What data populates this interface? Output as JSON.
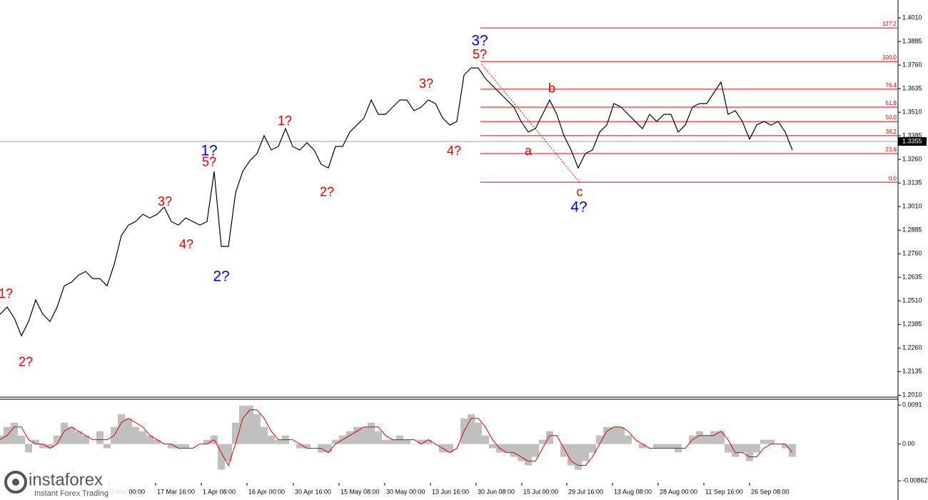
{
  "chart_data": {
    "type": "line",
    "color": "#000000",
    "xlim": [
      0,
      125.8
    ],
    "ylim": [
      1.2,
      1.4105
    ],
    "yticks": [
      {
        "value": 1.401,
        "label": "1.4010"
      },
      1.3885,
      {
        "value": 1.376,
        "label": "1.3760"
      },
      1.3635,
      {
        "value": 1.351,
        "label": "1.3510"
      },
      1.3385,
      {
        "value": 1.326,
        "label": "1.3260"
      },
      1.3135,
      {
        "value": 1.301,
        "label": "1.3010"
      },
      1.2885,
      {
        "value": 1.276,
        "label": "1.2760"
      },
      1.2635,
      {
        "value": 1.251,
        "label": "1.2510"
      },
      1.2385,
      {
        "value": 1.226,
        "label": "1.2260"
      },
      1.2135,
      {
        "value": 1.201,
        "label": "1.2010"
      }
    ],
    "xticks": [
      {
        "value": 15.3,
        "label": "3 Mar 00:00"
      },
      {
        "value": 21.8,
        "label": "17 Mar 16:00"
      },
      {
        "value": 28.2,
        "label": "1 Apr 08:00"
      },
      {
        "value": 34.6,
        "label": "16 Apr 00:00"
      },
      {
        "value": 41.1,
        "label": "30 Apr 16:00"
      },
      {
        "value": 47.5,
        "label": "15 May 08:00"
      },
      {
        "value": 53.9,
        "label": "30 May 00:00"
      },
      {
        "value": 60.3,
        "label": "13 Jun 16:00"
      },
      {
        "value": 66.7,
        "label": "30 Jun 08:00"
      },
      {
        "value": 73.1,
        "label": "15 Jul 00:00"
      },
      {
        "value": 79.4,
        "label": "29 Jul 16:00"
      },
      {
        "value": 85.8,
        "label": "13 Aug 08:00"
      },
      {
        "value": 92.2,
        "label": "28 Aug 00:00"
      },
      {
        "value": 98.6,
        "label": "11 Sep 16:00"
      },
      {
        "value": 105.0,
        "label": "26 Sep 08:00"
      }
    ],
    "values": [
      1.2439,
      1.2477,
      1.242,
      1.2325,
      1.2401,
      1.2515,
      1.2439,
      1.2401,
      1.2477,
      1.259,
      1.2609,
      1.2647,
      1.2666,
      1.2628,
      1.2628,
      1.259,
      1.2704,
      1.2856,
      1.2912,
      1.2931,
      1.2969,
      1.295,
      1.2969,
      1.3007,
      1.2931,
      1.2912,
      1.295,
      1.2931,
      1.2912,
      1.2931,
      1.3196,
      1.2799,
      1.2799,
      1.3083,
      1.3196,
      1.3253,
      1.3291,
      1.3386,
      1.331,
      1.3329,
      1.3423,
      1.3329,
      1.331,
      1.3348,
      1.331,
      1.3234,
      1.3215,
      1.3329,
      1.3329,
      1.3405,
      1.3442,
      1.348,
      1.3575,
      1.3499,
      1.3499,
      1.3537,
      1.3575,
      1.3575,
      1.3518,
      1.3537,
      1.3575,
      1.3556,
      1.348,
      1.3442,
      1.3461,
      1.3707,
      1.3745,
      1.3745,
      1.3689,
      1.3651,
      1.3613,
      1.3575,
      1.3537,
      1.3461,
      1.3405,
      1.3423,
      1.3499,
      1.3575,
      1.3499,
      1.3386,
      1.331,
      1.3215,
      1.3291,
      1.331,
      1.3405,
      1.3442,
      1.3556,
      1.3537,
      1.3499,
      1.3461,
      1.3423,
      1.3499,
      1.3461,
      1.3499,
      1.3499,
      1.3405,
      1.3442,
      1.3537,
      1.3556,
      1.3556,
      1.3613,
      1.367,
      1.3499,
      1.3518,
      1.3461,
      1.3367,
      1.3442,
      1.3461,
      1.3442,
      1.3461,
      1.3405,
      1.331
    ],
    "current_price": 1.3355,
    "fib_color": "#e00000",
    "fib_x_start": 67.3,
    "fib_levels": [
      {
        "label": "127.2",
        "value": 1.3957
      },
      {
        "label": "100.0",
        "value": 1.3779
      },
      {
        "label": "76.4",
        "value": 1.3632
      },
      {
        "label": "61.8",
        "value": 1.3537
      },
      {
        "label": "50.0",
        "value": 1.3461
      },
      {
        "label": "38.2",
        "value": 1.3386
      },
      {
        "label": "23.6",
        "value": 1.3291
      },
      {
        "label": "0.0",
        "value": 1.3139
      }
    ],
    "trend_line": {
      "x": [
        67.5,
        81.2
      ],
      "y": [
        1.3764,
        1.3139
      ]
    },
    "annotations": [
      {
        "text": "1?",
        "color": "#e00000",
        "x": 0.8,
        "y": 1.2545
      },
      {
        "text": "2?",
        "color": "#e00000",
        "x": 3.6,
        "y": 1.2182
      },
      {
        "text": "3?",
        "color": "#e00000",
        "x": 23.1,
        "y": 1.3033
      },
      {
        "text": "4?",
        "color": "#e00000",
        "x": 26.1,
        "y": 1.2806
      },
      {
        "text": "1?",
        "color": "#0000e0",
        "x": 29.3,
        "y": 1.3302
      },
      {
        "text": "5?",
        "color": "#e00000",
        "x": 29.3,
        "y": 1.3242
      },
      {
        "text": "2?",
        "color": "#0000e0",
        "x": 31.0,
        "y": 1.2636
      },
      {
        "text": "1?",
        "color": "#e00000",
        "x": 39.9,
        "y": 1.3461
      },
      {
        "text": "2?",
        "color": "#e00000",
        "x": 45.8,
        "y": 1.3083
      },
      {
        "text": "3?",
        "color": "#e00000",
        "x": 59.7,
        "y": 1.3658
      },
      {
        "text": "4?",
        "color": "#e00000",
        "x": 63.6,
        "y": 1.3302
      },
      {
        "text": "3?",
        "color": "#0000e0",
        "x": 67.2,
        "y": 1.3885
      },
      {
        "text": "5?",
        "color": "#e00000",
        "x": 67.2,
        "y": 1.3813
      },
      {
        "text": "a",
        "color": "#e00000",
        "x": 74.0,
        "y": 1.3302
      },
      {
        "text": "b",
        "color": "#e00000",
        "x": 77.3,
        "y": 1.3632
      },
      {
        "text": "c",
        "color": "#e00000",
        "x": 81.2,
        "y": 1.3083
      },
      {
        "text": "4?",
        "color": "#0000e0",
        "x": 81.1,
        "y": 1.3003
      }
    ],
    "oscillator": {
      "ylim": [
        -0.0131,
        0.0103
      ],
      "yticks": [
        0.0091,
        {
          "value": 0,
          "label": "0.00"
        },
        -0.00862
      ],
      "histogram_color": "#c0c0c0",
      "signal_color": "#e00000",
      "histogram": [
        0.002,
        0.004,
        0.005,
        0.002,
        -0.002,
        0.001,
        -0.001,
        -0.001,
        0.002,
        0.005,
        0.004,
        0.003,
        0.002,
        0.0,
        0.003,
        -0.001,
        0.004,
        0.007,
        0.006,
        0.004,
        0.003,
        0.002,
        0.001,
        0.0,
        -0.001,
        -0.001,
        -0.001,
        0.0,
        0.0,
        0.001,
        0.002,
        -0.006,
        -0.004,
        0.005,
        0.009,
        0.009,
        0.007,
        0.004,
        0.002,
        0.001,
        0.002,
        0.0,
        -0.001,
        -0.001,
        0.0,
        -0.002,
        -0.002,
        0.001,
        0.002,
        0.003,
        0.004,
        0.004,
        0.005,
        0.003,
        0.001,
        0.001,
        0.002,
        0.001,
        0.0,
        0.001,
        0.001,
        0.0,
        -0.002,
        -0.002,
        0.0,
        0.006,
        0.007,
        0.005,
        0.002,
        -0.001,
        -0.002,
        -0.002,
        -0.003,
        -0.004,
        -0.005,
        -0.003,
        0.001,
        0.003,
        0.0,
        -0.003,
        -0.005,
        -0.006,
        -0.004,
        -0.002,
        0.002,
        0.004,
        0.004,
        0.004,
        0.002,
        0.0,
        -0.001,
        0.0,
        -0.001,
        -0.001,
        -0.001,
        -0.002,
        0.0,
        0.002,
        0.003,
        0.002,
        0.003,
        0.003,
        -0.002,
        -0.003,
        -0.002,
        -0.004,
        -0.002,
        0.001,
        0.001,
        0.0,
        -0.001,
        -0.003
      ],
      "signal": [
        0.001,
        0.002,
        0.004,
        0.004,
        0.001,
        0.0,
        0.0,
        -0.001,
        0.0,
        0.003,
        0.004,
        0.003,
        0.002,
        0.001,
        0.001,
        0.001,
        0.002,
        0.005,
        0.006,
        0.005,
        0.004,
        0.002,
        0.001,
        0.0,
        0.0,
        -0.001,
        -0.001,
        -0.001,
        0.0,
        0.0,
        0.001,
        -0.002,
        -0.005,
        0.0,
        0.006,
        0.008,
        0.008,
        0.006,
        0.003,
        0.001,
        0.001,
        0.001,
        0.0,
        -0.001,
        -0.001,
        -0.001,
        -0.002,
        0.0,
        0.001,
        0.002,
        0.003,
        0.004,
        0.004,
        0.004,
        0.002,
        0.001,
        0.001,
        0.001,
        0.001,
        0.0,
        0.001,
        0.0,
        -0.001,
        -0.002,
        -0.001,
        0.003,
        0.006,
        0.006,
        0.004,
        0.001,
        -0.001,
        -0.002,
        -0.002,
        -0.003,
        -0.004,
        -0.004,
        -0.001,
        0.002,
        0.002,
        -0.001,
        -0.004,
        -0.005,
        -0.005,
        -0.003,
        0.0,
        0.003,
        0.004,
        0.004,
        0.003,
        0.001,
        0.0,
        -0.001,
        -0.001,
        -0.001,
        -0.001,
        -0.001,
        -0.001,
        0.001,
        0.002,
        0.002,
        0.002,
        0.003,
        0.001,
        -0.002,
        -0.002,
        -0.003,
        -0.003,
        -0.001,
        0.0,
        0.0,
        0.0,
        -0.002
      ]
    },
    "logo": {
      "brand": "instaforex",
      "tagline": "Instant Forex Trading"
    }
  }
}
